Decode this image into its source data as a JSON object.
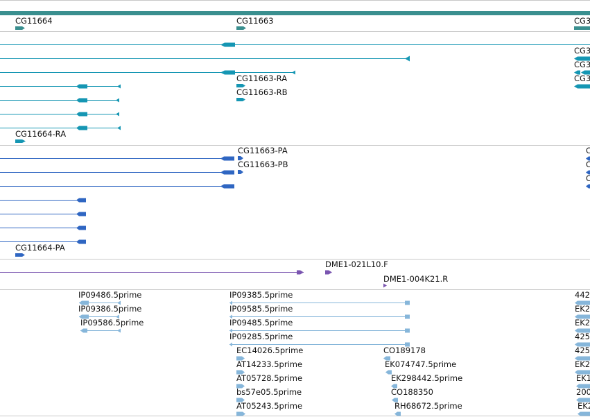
{
  "colors": {
    "separator": "#c8c8c8",
    "gene_bar": "#3a8f8f",
    "gene": "#3a8f8f",
    "mrna": "#1596b3",
    "protein": "#2f66c2",
    "est": "#7a55b0",
    "cdna": "#86b6da"
  },
  "genes": [
    {
      "label": "CG11664"
    },
    {
      "label": "CG11663"
    },
    {
      "label": "CG3"
    }
  ],
  "mrna_labels": {
    "CG11663_RA": "CG11663-RA",
    "CG11663_RB": "CG11663-RB",
    "CG11664_RA": "CG11664-RA",
    "right": [
      "CG3",
      "CG3",
      "CG3"
    ]
  },
  "protein_labels": {
    "CG11663_PA": "CG11663-PA",
    "CG11663_PB": "CG11663-PB",
    "CG11664_PA": "CG11664-PA",
    "right": [
      "C",
      "C",
      "C"
    ]
  },
  "est_labels": {
    "a": "DME1-021L10.F",
    "b": "DME1-004K21.R"
  },
  "cdna_labels": {
    "left": [
      "IP09486.5prime",
      "IP09386.5prime",
      "IP09586.5prime"
    ],
    "mid": [
      "IP09385.5prime",
      "IP09585.5prime",
      "IP09485.5prime",
      "IP09285.5prime"
    ],
    "mid2": [
      "EC14026.5prime",
      "AT14233.5prime",
      "AT05728.5prime",
      "bs57e05.5prime",
      "AT05243.5prime"
    ],
    "right": [
      "CO189178",
      "EK074747.5prime",
      "EK298442.5prime",
      "CO188350",
      "RH68672.5prime"
    ],
    "edge": [
      "442",
      "EK2",
      "EK2",
      "425",
      "425",
      "EK2",
      "EK1",
      "200",
      "EK2"
    ]
  }
}
